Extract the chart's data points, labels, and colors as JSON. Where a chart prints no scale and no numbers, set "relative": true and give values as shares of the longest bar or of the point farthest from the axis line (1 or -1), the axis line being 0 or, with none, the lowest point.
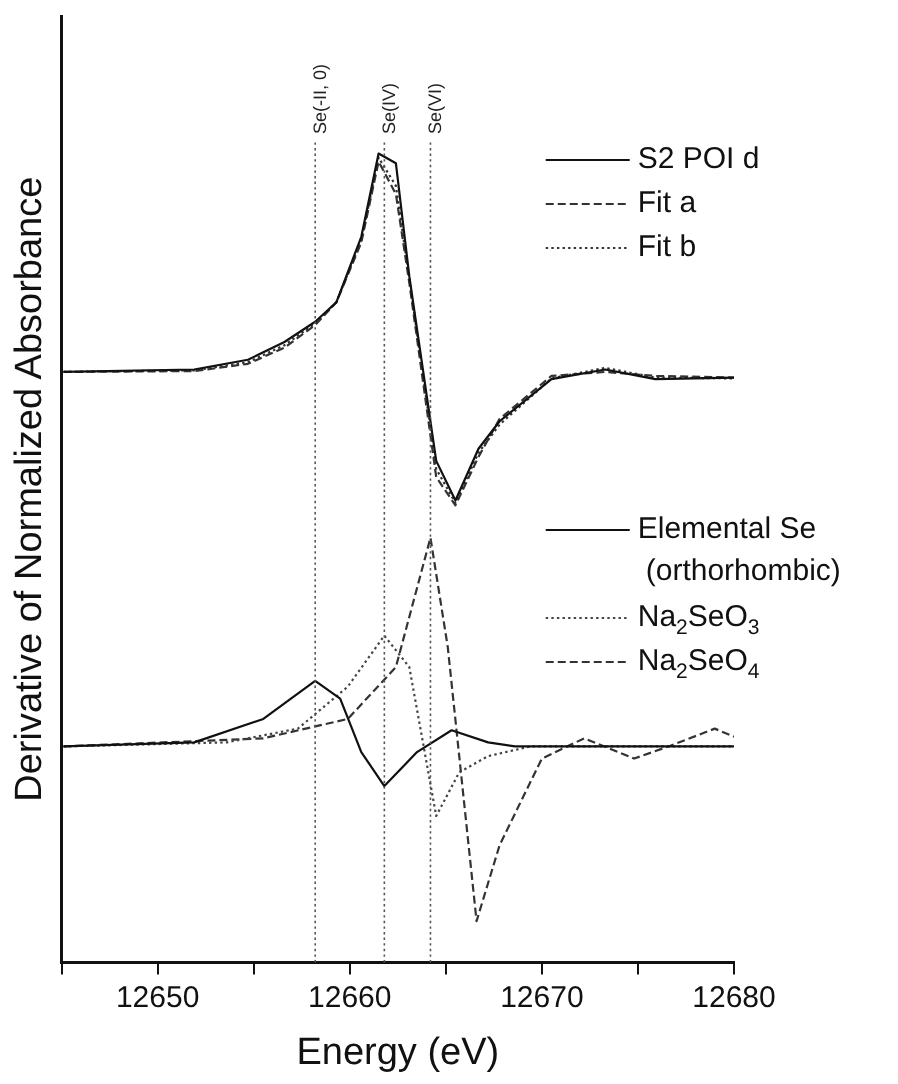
{
  "chart_data": {
    "type": "line",
    "relative": true,
    "xlabel": "Energy (eV)",
    "ylabel": "Derivative of Normalized Absorbance",
    "xlim": [
      12645,
      12680
    ],
    "xticks": [
      {
        "value": 12645,
        "label": null
      },
      12650,
      {
        "value": 12655,
        "label": null
      },
      12660,
      {
        "value": 12665,
        "label": null
      },
      12670,
      {
        "value": 12675,
        "label": null
      },
      12680
    ],
    "grid": false,
    "legend": "right",
    "marker": "none",
    "series": [
      {
        "name": "S2 POI d",
        "color": "#111111",
        "line_style": "solid",
        "x": [
          12645.1,
          12651.9,
          12654.7,
          12656.6,
          12658.2,
          12659.3,
          12660.6,
          12661.5,
          12662.4,
          12663.1,
          12664.5,
          12665.5,
          12666.7,
          12667.8,
          12670.5,
          12673.3,
          12675.9,
          12680
        ],
        "values": [
          0.73,
          0.733,
          0.745,
          0.767,
          0.792,
          0.816,
          0.897,
          1.0,
          0.988,
          0.848,
          0.62,
          0.571,
          0.635,
          0.669,
          0.721,
          0.733,
          0.721,
          0.723
        ]
      },
      {
        "name": "Fit a",
        "color": "#333333",
        "line_style": "dashed",
        "x": [
          12645.1,
          12651.9,
          12654.7,
          12656.6,
          12658.2,
          12659.3,
          12660.6,
          12661.5,
          12662.4,
          12663.1,
          12664.5,
          12665.5,
          12666.7,
          12667.8,
          12670.5,
          12673.3,
          12675.9,
          12680
        ],
        "values": [
          0.73,
          0.731,
          0.74,
          0.76,
          0.788,
          0.816,
          0.89,
          0.99,
          0.95,
          0.84,
          0.6,
          0.565,
          0.625,
          0.672,
          0.725,
          0.73,
          0.725,
          0.723
        ]
      },
      {
        "name": "Fit b",
        "color": "#333333",
        "line_style": "dotted",
        "x": [
          12645.1,
          12651.9,
          12654.7,
          12656.6,
          12658.2,
          12659.3,
          12660.6,
          12661.5,
          12662.4,
          12663.1,
          12664.5,
          12665.5,
          12666.7,
          12667.8,
          12670.5,
          12673.3,
          12675.9,
          12680
        ],
        "values": [
          0.73,
          0.732,
          0.742,
          0.763,
          0.79,
          0.816,
          0.893,
          0.995,
          0.96,
          0.845,
          0.61,
          0.568,
          0.63,
          0.665,
          0.722,
          0.735,
          0.723,
          0.722
        ]
      },
      {
        "name": "Elemental Se (orthorhombic)",
        "color": "#111111",
        "line_style": "solid",
        "x": [
          12645.1,
          12651.9,
          12655.5,
          12658.2,
          12659.5,
          12660.6,
          12661.8,
          12663.5,
          12665.3,
          12667.2,
          12668.6,
          12680
        ],
        "values": [
          0.267,
          0.272,
          0.301,
          0.348,
          0.326,
          0.26,
          0.218,
          0.26,
          0.287,
          0.272,
          0.267,
          0.267
        ]
      },
      {
        "name": "Na$_{2}$SeO$_{3}$",
        "color": "#444444",
        "line_style": "dotted",
        "x": [
          12645.1,
          12653.6,
          12657.3,
          12659.9,
          12661.8,
          12663.1,
          12664.5,
          12665.7,
          12667.2,
          12669.4,
          12673.7,
          12680
        ],
        "values": [
          0.267,
          0.272,
          0.289,
          0.341,
          0.404,
          0.365,
          0.181,
          0.235,
          0.255,
          0.267,
          0.267,
          0.267
        ]
      },
      {
        "name": "Na$_{2}$SeO$_{4}$",
        "color": "#333333",
        "line_style": "dashed",
        "x": [
          12645.1,
          12655.5,
          12659.9,
          12662.4,
          12664.2,
          12665.1,
          12666.6,
          12667.8,
          12670.0,
          12672.2,
          12674.8,
          12676.6,
          12679.0,
          12680
        ],
        "values": [
          0.267,
          0.277,
          0.301,
          0.365,
          0.525,
          0.39,
          0.051,
          0.145,
          0.252,
          0.277,
          0.252,
          0.267,
          0.289,
          0.279
        ]
      }
    ],
    "ref_lines": [
      {
        "axis": "x",
        "value": 12658.2,
        "label": "Se(-II, 0)",
        "color": "#555555",
        "line_style": "dotted"
      },
      {
        "axis": "x",
        "value": 12661.8,
        "label": "Se(IV)",
        "color": "#555555",
        "line_style": "dotted"
      },
      {
        "axis": "x",
        "value": 12664.2,
        "label": "Se(VI)",
        "color": "#555555",
        "line_style": "dotted"
      }
    ]
  }
}
